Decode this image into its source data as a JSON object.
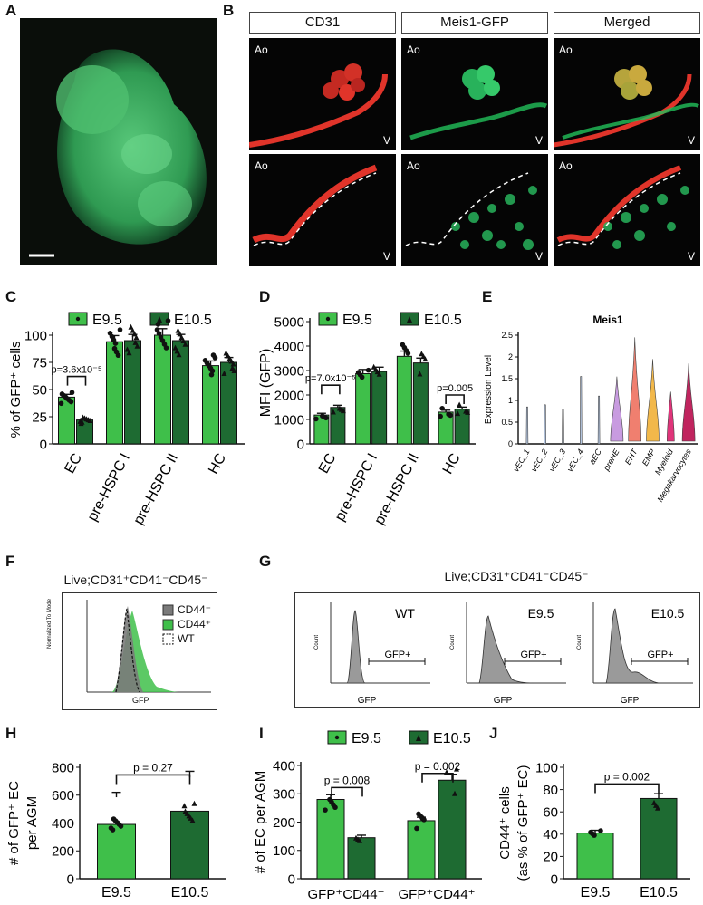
{
  "panel_letters": {
    "A": "A",
    "B": "B",
    "C": "C",
    "D": "D",
    "E": "E",
    "F": "F",
    "G": "G",
    "H": "H",
    "I": "I",
    "J": "J"
  },
  "colors": {
    "e95": "#3fbf4a",
    "e105": "#1e6b32",
    "dark": "#111111",
    "red": "#e0342a",
    "green": "#22c15a"
  },
  "panel_B": {
    "headers": [
      "CD31",
      "Meis1-GFP",
      "Merged"
    ],
    "ao_label": "Ao",
    "v_label": "V"
  },
  "legend": {
    "e95": "E9.5",
    "e105": "E10.5"
  },
  "panel_F": {
    "title": "Live;CD31⁺CD41⁻CD45⁻",
    "legend": [
      "CD44⁻",
      "CD44⁺",
      "WT"
    ],
    "ylabel": "Normalized To Mode",
    "xlabel": "GFP"
  },
  "panel_G": {
    "title": "Live;CD31⁺CD41⁻CD45⁻",
    "panels": [
      "WT",
      "E9.5",
      "E10.5"
    ],
    "gate_label": "GFP+",
    "xlabel": "GFP",
    "ylabel": "Count"
  },
  "chart_data": [
    {
      "id": "C",
      "type": "bar",
      "ylabel": "% of GFP⁺ cells",
      "ylim": [
        0,
        100
      ],
      "yticks": [
        0,
        25,
        50,
        75,
        100
      ],
      "categories": [
        "EC",
        "pre-HSPC I",
        "pre-HSPC II",
        "HC"
      ],
      "series": [
        {
          "name": "E9.5",
          "values": [
            43,
            94,
            100,
            72
          ]
        },
        {
          "name": "E10.5",
          "values": [
            22,
            95,
            95,
            75
          ]
        }
      ],
      "annotations": [
        {
          "text": "p=3.6x10⁻⁵",
          "category": "EC"
        }
      ]
    },
    {
      "id": "D",
      "type": "bar",
      "ylabel": "MFI (GFP)",
      "ylim": [
        0,
        5000
      ],
      "yticks": [
        0,
        1000,
        2000,
        3000,
        4000,
        5000
      ],
      "categories": [
        "EC",
        "pre-HSPC I",
        "pre-HSPC II",
        "HC"
      ],
      "series": [
        {
          "name": "E9.5",
          "values": [
            1180,
            2870,
            3580,
            1300
          ]
        },
        {
          "name": "E10.5",
          "values": [
            1490,
            2960,
            3310,
            1420
          ]
        }
      ],
      "annotations": [
        {
          "text": "p=7.0x10⁻⁵",
          "category": "EC"
        },
        {
          "text": "p=0.005",
          "category": "HC"
        }
      ]
    },
    {
      "id": "E",
      "type": "violin",
      "title": "Meis1",
      "ylabel": "Expression Level",
      "ylim": [
        0,
        2.5
      ],
      "yticks": [
        0.0,
        0.5,
        1.0,
        1.5,
        2.0,
        2.5
      ],
      "categories": [
        "vEC_1",
        "vEC_2",
        "vEC_3",
        "vEC_4",
        "aEC",
        "preHE",
        "EHT",
        "EMP",
        "Myeloid",
        "Megakaryocytes"
      ],
      "max_values": [
        0.85,
        0.9,
        0.8,
        1.55,
        1.1,
        1.55,
        2.45,
        1.95,
        1.2,
        1.85
      ],
      "fill_colors": [
        "#b9cbe6",
        "#b9cbe6",
        "#b9cbe6",
        "#b9cbe6",
        "#b9cbe6",
        "#c89be0",
        "#f07f6f",
        "#f2b84a",
        "#e0347a",
        "#c0245e"
      ]
    },
    {
      "id": "H",
      "type": "bar",
      "ylabel": "# of GFP⁺ EC per AGM",
      "ylim": [
        0,
        800
      ],
      "yticks": [
        0,
        200,
        400,
        600,
        800
      ],
      "categories": [
        "E9.5",
        "E10.5"
      ],
      "values": [
        390,
        485
      ],
      "annotations": [
        {
          "text": "p = 0.27"
        }
      ]
    },
    {
      "id": "I",
      "type": "bar",
      "ylabel": "# of EC per AGM",
      "ylim": [
        0,
        400
      ],
      "yticks": [
        0,
        100,
        200,
        300,
        400
      ],
      "categories": [
        "GFP⁺CD44⁻",
        "GFP⁺CD44⁺"
      ],
      "series": [
        {
          "name": "E9.5",
          "values": [
            280,
            205
          ]
        },
        {
          "name": "E10.5",
          "values": [
            145,
            348
          ]
        }
      ],
      "annotations": [
        {
          "text": "p = 0.008"
        },
        {
          "text": "p = 0.002"
        }
      ]
    },
    {
      "id": "J",
      "type": "bar",
      "ylabel": "CD44⁺ cells (as % of GFP⁺ EC)",
      "ylabel_lines": [
        "CD44⁺ cells",
        "(as % of GFP⁺ EC)"
      ],
      "ylim": [
        0,
        100
      ],
      "yticks": [
        0,
        20,
        40,
        60,
        80,
        100
      ],
      "categories": [
        "E9.5",
        "E10.5"
      ],
      "values": [
        41,
        72
      ],
      "annotations": [
        {
          "text": "p = 0.002"
        }
      ]
    }
  ]
}
